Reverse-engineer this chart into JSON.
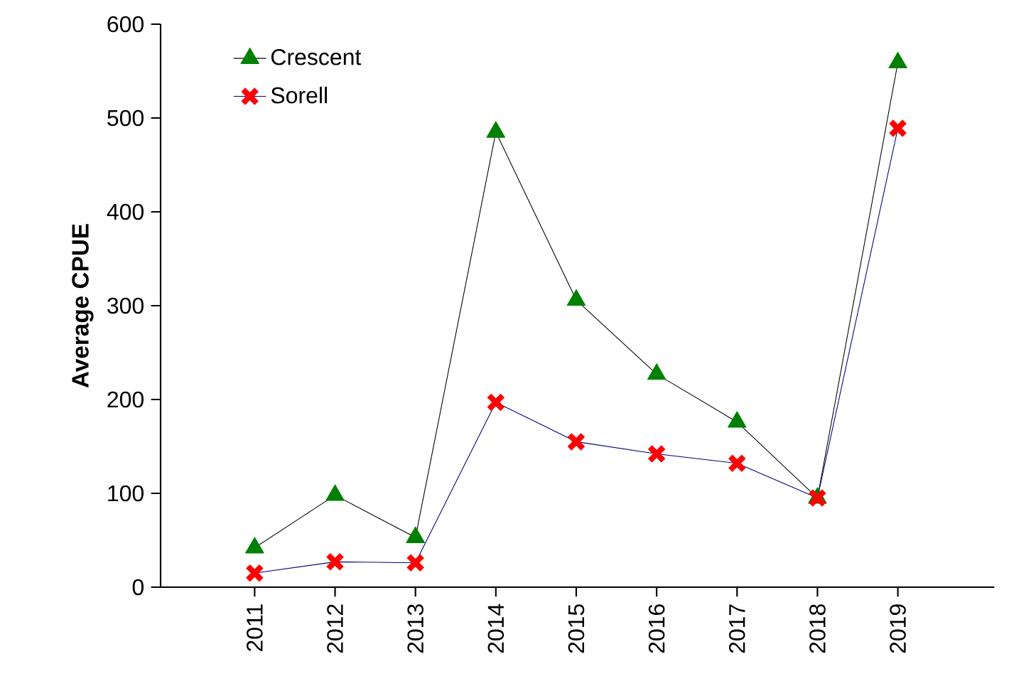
{
  "chart_data": {
    "type": "line",
    "ylabel": "Average CPUE",
    "categories": [
      "2011",
      "2012",
      "2013",
      "2014",
      "2015",
      "2016",
      "2017",
      "2018",
      "2019"
    ],
    "series": [
      {
        "name": "Crescent",
        "color": "#008000",
        "marker": "triangle",
        "values": [
          42,
          98,
          53,
          485,
          306,
          227,
          176,
          95,
          559
        ]
      },
      {
        "name": "Sorell",
        "color": "#ff0000",
        "marker": "cross",
        "values": [
          15,
          27,
          26,
          197,
          155,
          142,
          132,
          95,
          489
        ]
      }
    ],
    "ylim": [
      0,
      600
    ],
    "yticks": [
      0,
      100,
      200,
      300,
      400,
      500,
      600
    ],
    "grid": false,
    "legend": "top left"
  }
}
